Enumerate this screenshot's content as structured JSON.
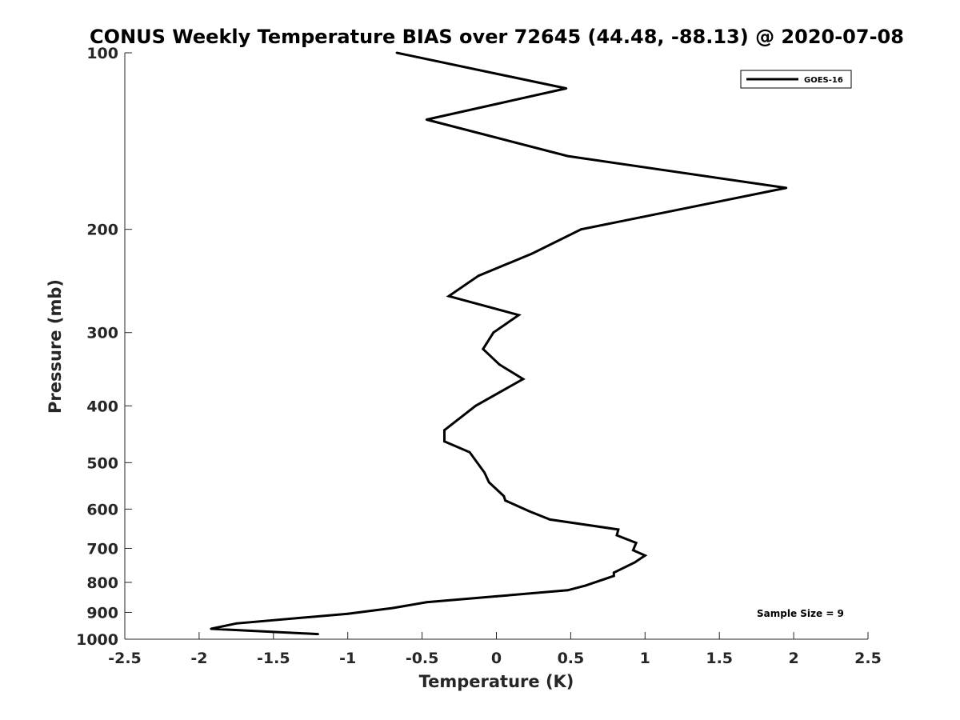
{
  "chart_data": {
    "type": "line",
    "title": "CONUS Weekly Temperature BIAS over 72645 (44.48, -88.13) @ 2020-07-08",
    "xlabel": "Temperature (K)",
    "ylabel": "Pressure (mb)",
    "xlim": [
      -2.5,
      2.5
    ],
    "ylim": [
      100,
      1000
    ],
    "y_scale": "log",
    "y_reversed": true,
    "x_ticks": [
      -2.5,
      -2,
      -1.5,
      -1,
      -0.5,
      0,
      0.5,
      1,
      1.5,
      2,
      2.5
    ],
    "x_tick_labels": [
      "-2.5",
      "-2",
      "-1.5",
      "-1",
      "-0.5",
      "0",
      "0.5",
      "1",
      "1.5",
      "2",
      "2.5"
    ],
    "y_ticks": [
      100,
      200,
      300,
      400,
      500,
      600,
      700,
      800,
      900,
      1000
    ],
    "y_tick_labels": [
      "100",
      "200",
      "300",
      "400",
      "500",
      "600",
      "700",
      "800",
      "900",
      "1000"
    ],
    "grid": false,
    "legend_position": "top-right",
    "series": [
      {
        "name": "GOES-16",
        "color": "#000000",
        "points": [
          {
            "temperature": -0.67,
            "pressure": 100
          },
          {
            "temperature": 0.47,
            "pressure": 115
          },
          {
            "temperature": -0.47,
            "pressure": 130
          },
          {
            "temperature": 0.48,
            "pressure": 150
          },
          {
            "temperature": 1.95,
            "pressure": 170
          },
          {
            "temperature": 0.57,
            "pressure": 200
          },
          {
            "temperature": 0.24,
            "pressure": 220
          },
          {
            "temperature": -0.12,
            "pressure": 240
          },
          {
            "temperature": -0.32,
            "pressure": 260
          },
          {
            "temperature": 0.15,
            "pressure": 280
          },
          {
            "temperature": -0.02,
            "pressure": 300
          },
          {
            "temperature": -0.09,
            "pressure": 320
          },
          {
            "temperature": 0.02,
            "pressure": 340
          },
          {
            "temperature": 0.18,
            "pressure": 360
          },
          {
            "temperature": -0.14,
            "pressure": 400
          },
          {
            "temperature": -0.35,
            "pressure": 440
          },
          {
            "temperature": -0.35,
            "pressure": 460
          },
          {
            "temperature": -0.18,
            "pressure": 480
          },
          {
            "temperature": -0.08,
            "pressure": 520
          },
          {
            "temperature": -0.05,
            "pressure": 540
          },
          {
            "temperature": 0.05,
            "pressure": 570
          },
          {
            "temperature": 0.06,
            "pressure": 580
          },
          {
            "temperature": 0.22,
            "pressure": 605
          },
          {
            "temperature": 0.36,
            "pressure": 625
          },
          {
            "temperature": 0.82,
            "pressure": 650
          },
          {
            "temperature": 0.81,
            "pressure": 665
          },
          {
            "temperature": 0.94,
            "pressure": 685
          },
          {
            "temperature": 0.92,
            "pressure": 705
          },
          {
            "temperature": 1.0,
            "pressure": 720
          },
          {
            "temperature": 0.93,
            "pressure": 740
          },
          {
            "temperature": 0.79,
            "pressure": 770
          },
          {
            "temperature": 0.79,
            "pressure": 780
          },
          {
            "temperature": 0.6,
            "pressure": 810
          },
          {
            "temperature": 0.48,
            "pressure": 825
          },
          {
            "temperature": 0.0,
            "pressure": 845
          },
          {
            "temperature": -0.47,
            "pressure": 865
          },
          {
            "temperature": -0.7,
            "pressure": 885
          },
          {
            "temperature": -1.0,
            "pressure": 905
          },
          {
            "temperature": -1.75,
            "pressure": 940
          },
          {
            "temperature": -1.92,
            "pressure": 960
          },
          {
            "temperature": -1.2,
            "pressure": 980
          }
        ]
      }
    ],
    "annotations": [
      "Sample Size = 9"
    ]
  }
}
